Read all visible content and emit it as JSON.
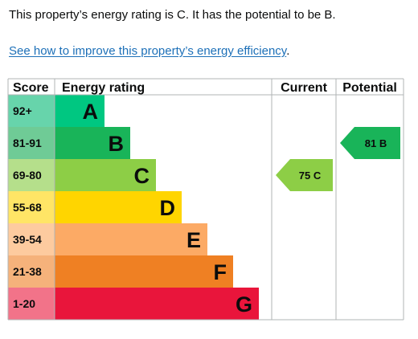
{
  "intro_text": "This property’s energy rating is C. It has the potential to be B.",
  "link": {
    "text": "See how to improve this property’s energy efficiency",
    "suffix": "."
  },
  "table": {
    "headers": {
      "score": "Score",
      "energy_rating": "Energy rating",
      "current": "Current",
      "potential": "Potential"
    },
    "bands": [
      {
        "score": "92+",
        "letter": "A",
        "color": "#00c781",
        "score_bg": "#67d4ab"
      },
      {
        "score": "81-91",
        "letter": "B",
        "color": "#19b459",
        "score_bg": "#6fcb96"
      },
      {
        "score": "69-80",
        "letter": "C",
        "color": "#8dce46",
        "score_bg": "#b5df8b"
      },
      {
        "score": "55-68",
        "letter": "D",
        "color": "#ffd500",
        "score_bg": "#ffe566"
      },
      {
        "score": "39-54",
        "letter": "E",
        "color": "#fcaa65",
        "score_bg": "#fdcb9f"
      },
      {
        "score": "21-38",
        "letter": "F",
        "color": "#ef8023",
        "score_bg": "#f5b27b"
      },
      {
        "score": "1-20",
        "letter": "G",
        "color": "#e9153b",
        "score_bg": "#f27389"
      }
    ],
    "current": {
      "band": "C",
      "value": 75,
      "label": "75  C",
      "color": "#8dce46"
    },
    "potential": {
      "band": "B",
      "value": 81,
      "label": "81  B",
      "color": "#19b459"
    }
  }
}
